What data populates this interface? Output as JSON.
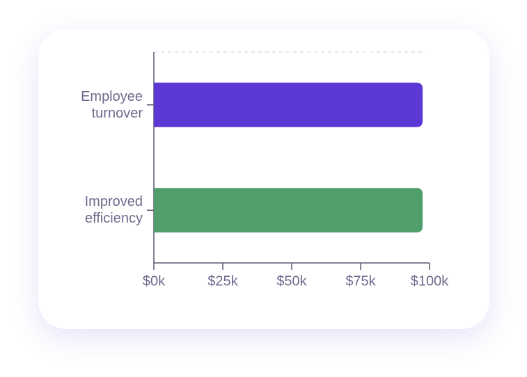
{
  "chart_data": {
    "type": "barh",
    "categories": [
      "Employee turnover",
      "Improved efficiency"
    ],
    "values": [
      97500,
      97500
    ],
    "colors": [
      "#5c38d4",
      "#4f9e6b"
    ],
    "xlim": [
      0,
      100000
    ],
    "xticks": [
      {
        "value": 0,
        "label": "$0k"
      },
      {
        "value": 25000,
        "label": "$25k"
      },
      {
        "value": 50000,
        "label": "$50k"
      },
      {
        "value": 75000,
        "label": "$75k"
      },
      {
        "value": 100000,
        "label": "$100k"
      }
    ]
  }
}
